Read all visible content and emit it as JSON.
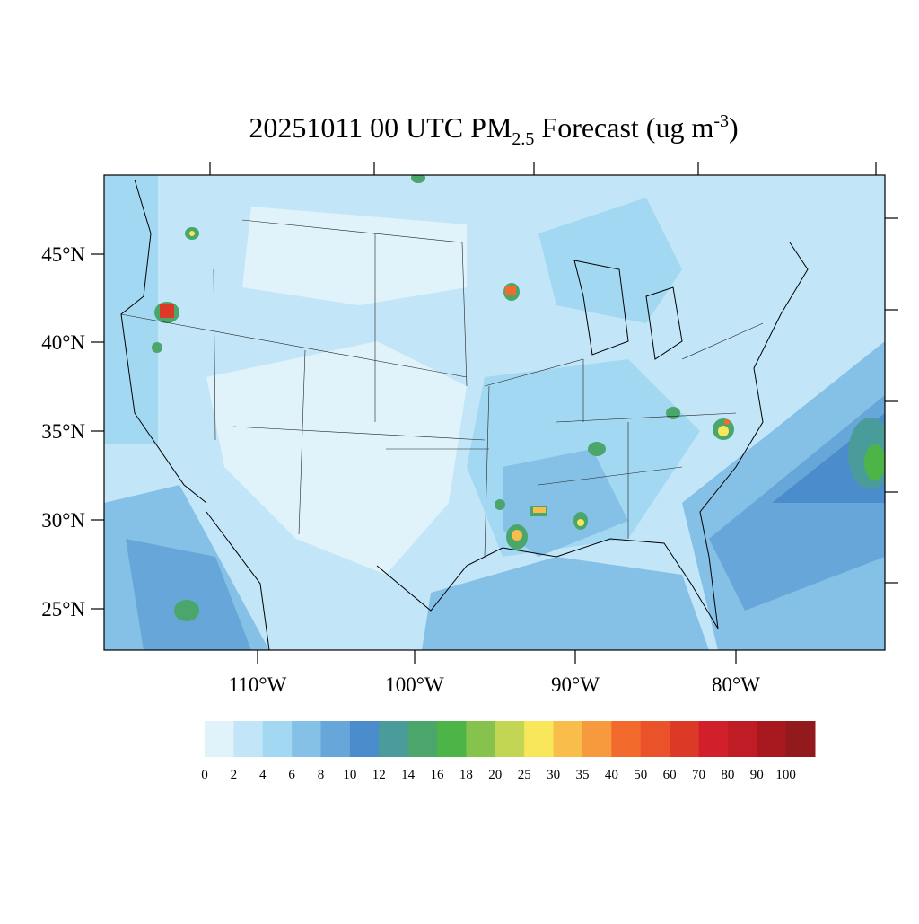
{
  "title": {
    "main": "20251011 00 UTC PM",
    "sub": "2.5",
    "mid": " Forecast (ug m",
    "sup": "-3",
    "end": ")"
  },
  "lat_labels": [
    "45°N",
    "40°N",
    "35°N",
    "30°N",
    "25°N"
  ],
  "lon_labels": [
    "110°W",
    "100°W",
    "90°W",
    "80°W"
  ],
  "colorbar": {
    "labels": [
      "0",
      "2",
      "4",
      "6",
      "8",
      "10",
      "12",
      "14",
      "16",
      "18",
      "20",
      "25",
      "30",
      "35",
      "40",
      "50",
      "60",
      "70",
      "80",
      "90",
      "100"
    ],
    "colors": [
      "#e0f3fb",
      "#c2e6f7",
      "#a3d8f3",
      "#85c0e6",
      "#67a6d8",
      "#4a8ccc",
      "#4a9c9a",
      "#4aa66b",
      "#4db548",
      "#86c34c",
      "#c2d654",
      "#f8e75b",
      "#f9bd4b",
      "#f79a3d",
      "#f26b2d",
      "#ea5329",
      "#dc3a27",
      "#d21f2c",
      "#bf1c26",
      "#a8191f",
      "#931a1c"
    ]
  }
}
